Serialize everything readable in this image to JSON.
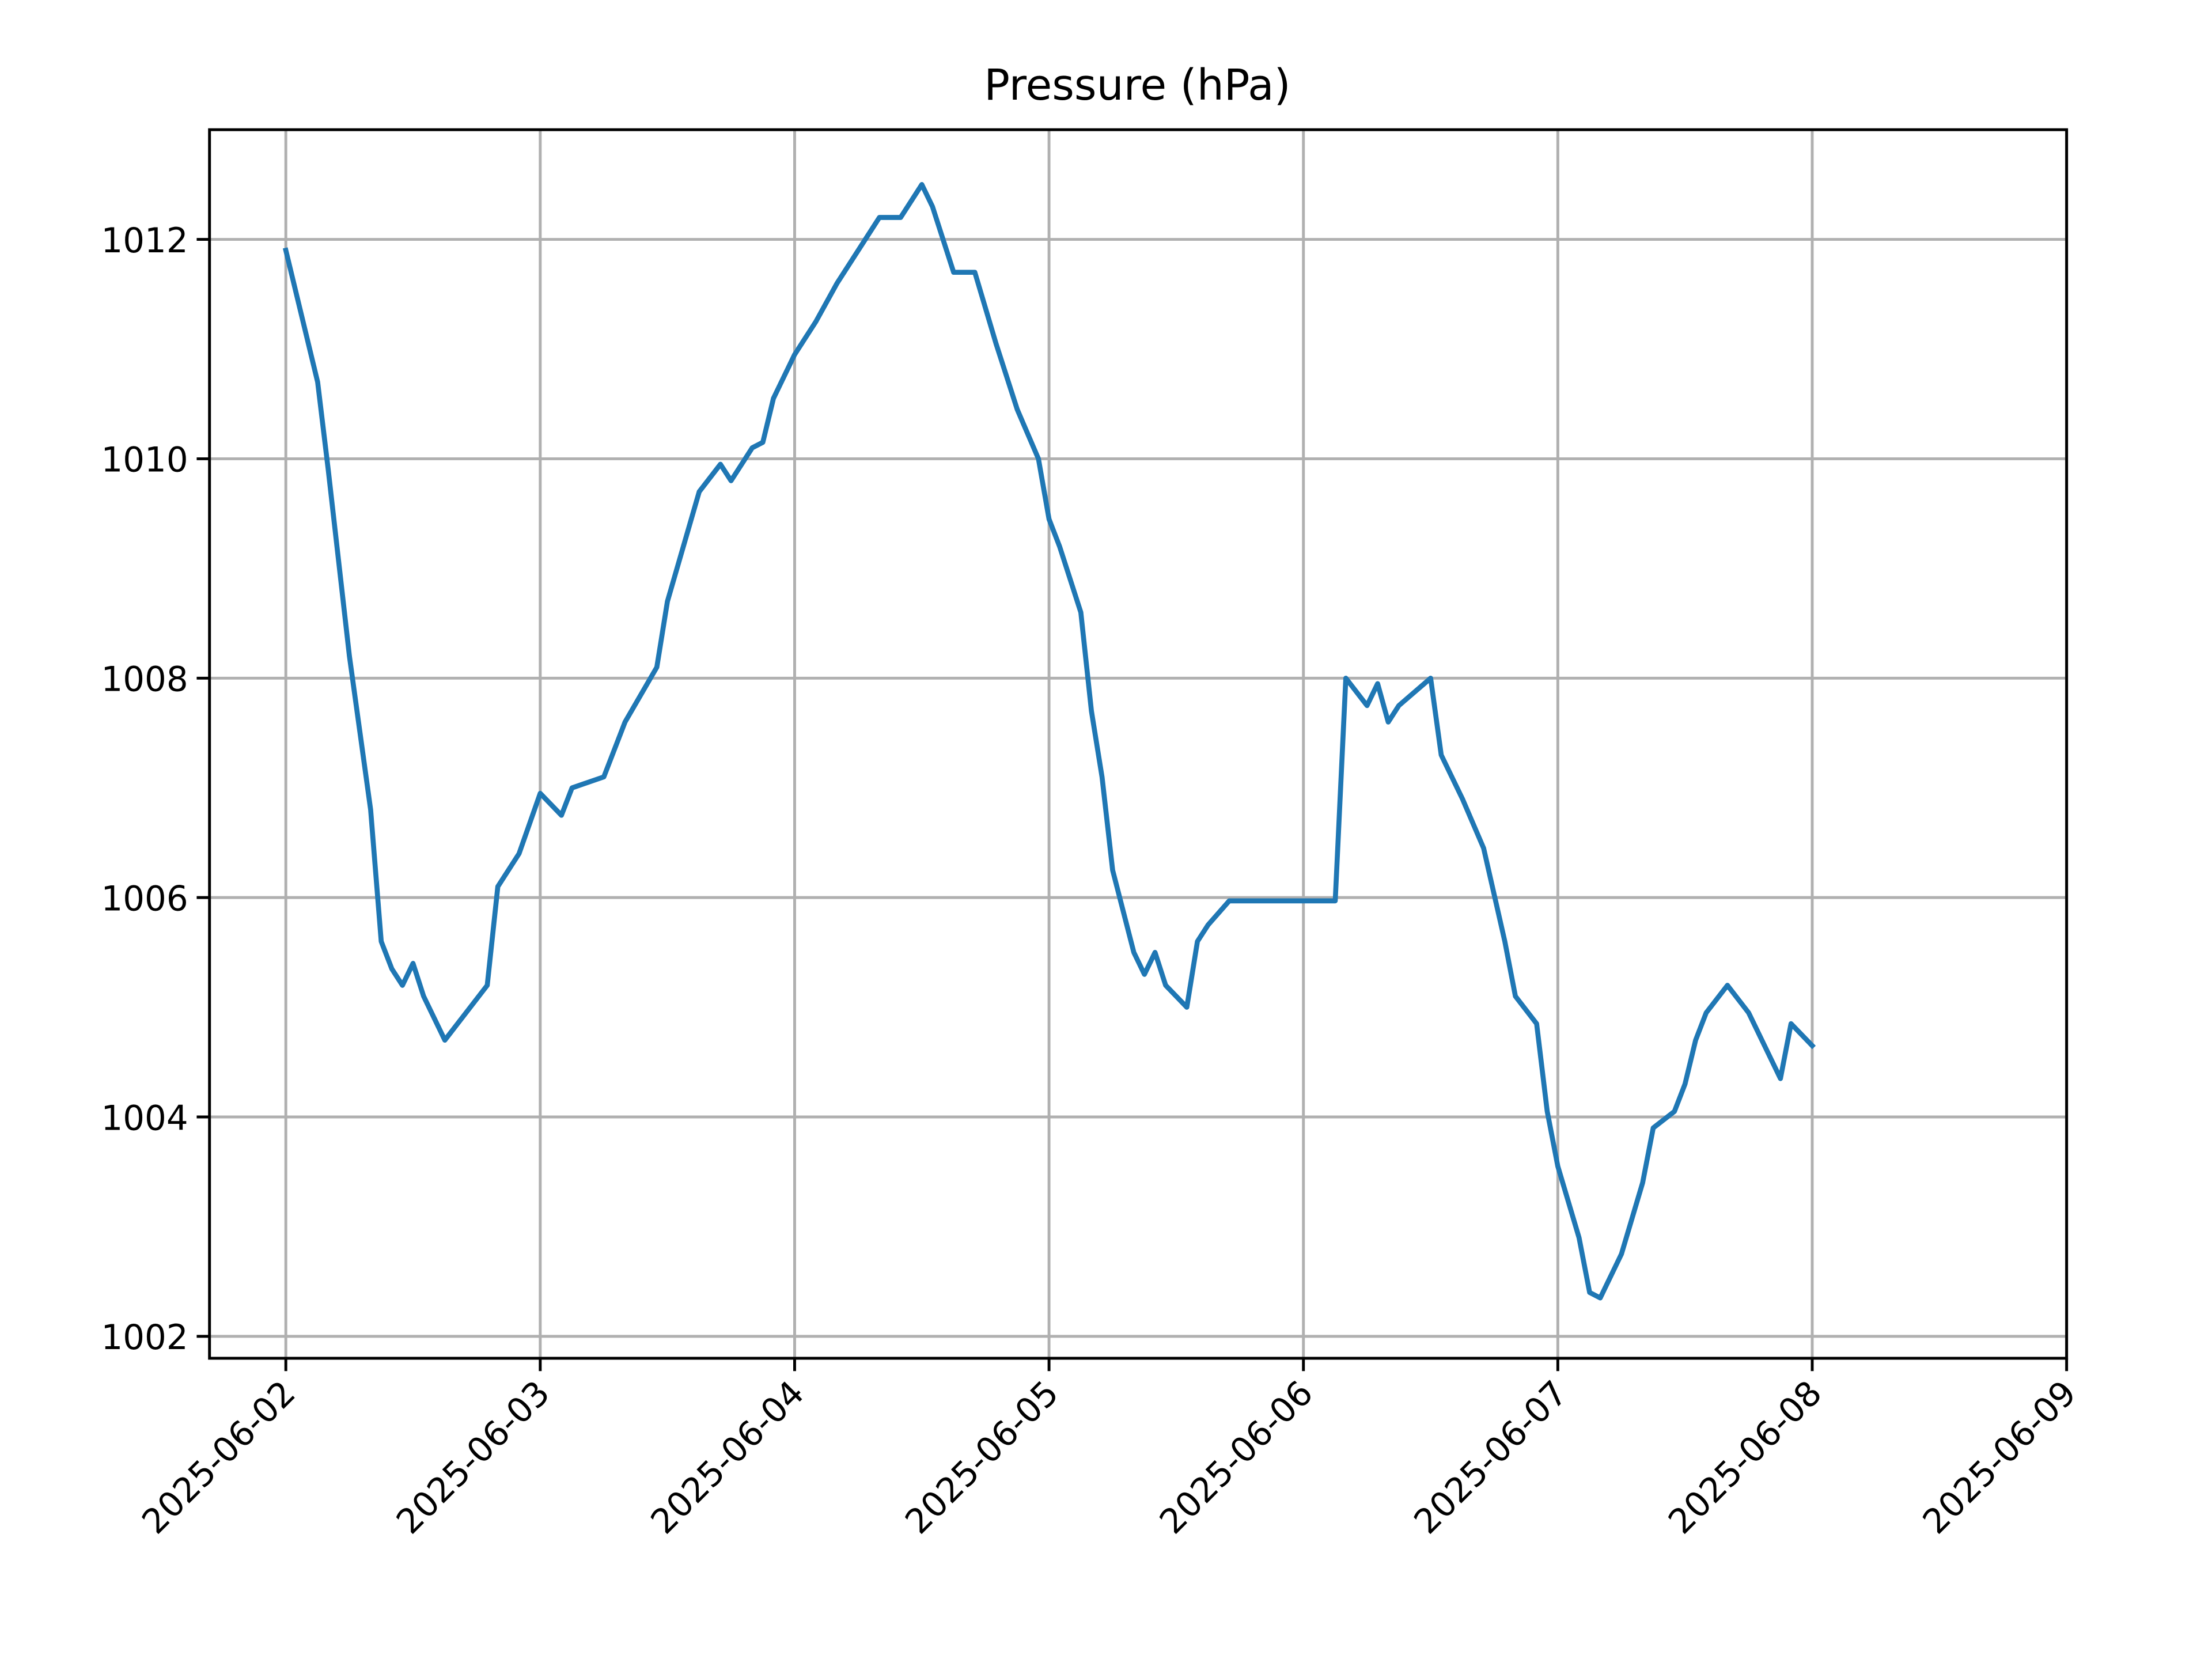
{
  "chart_data": {
    "type": "line",
    "title": "Pressure (hPa)",
    "color": "#1f77b4",
    "grid": true,
    "x": [
      "2025-06-02T00:00",
      "2025-06-02T03:00",
      "2025-06-02T04:00",
      "2025-06-02T06:00",
      "2025-06-02T08:00",
      "2025-06-02T09:00",
      "2025-06-02T10:00",
      "2025-06-02T11:00",
      "2025-06-02T12:00",
      "2025-06-02T13:00",
      "2025-06-02T15:00",
      "2025-06-02T17:00",
      "2025-06-02T19:00",
      "2025-06-02T20:00",
      "2025-06-02T22:00",
      "2025-06-03T00:00",
      "2025-06-03T02:00",
      "2025-06-03T03:00",
      "2025-06-03T06:00",
      "2025-06-03T08:00",
      "2025-06-03T11:00",
      "2025-06-03T12:00",
      "2025-06-03T15:00",
      "2025-06-03T17:00",
      "2025-06-03T18:00",
      "2025-06-03T20:00",
      "2025-06-03T21:00",
      "2025-06-03T22:00",
      "2025-06-04T00:00",
      "2025-06-04T02:00",
      "2025-06-04T04:00",
      "2025-06-04T06:00",
      "2025-06-04T08:00",
      "2025-06-04T10:00",
      "2025-06-04T12:00",
      "2025-06-04T13:00",
      "2025-06-04T15:00",
      "2025-06-04T17:00",
      "2025-06-04T19:00",
      "2025-06-04T21:00",
      "2025-06-04T23:00",
      "2025-06-05T00:00",
      "2025-06-05T01:00",
      "2025-06-05T03:00",
      "2025-06-05T04:00",
      "2025-06-05T05:00",
      "2025-06-05T06:00",
      "2025-06-05T08:00",
      "2025-06-05T09:00",
      "2025-06-05T10:00",
      "2025-06-05T11:00",
      "2025-06-05T13:00",
      "2025-06-05T14:00",
      "2025-06-05T15:00",
      "2025-06-05T17:00",
      "2025-06-06T03:00",
      "2025-06-06T04:00",
      "2025-06-06T06:00",
      "2025-06-06T07:00",
      "2025-06-06T08:00",
      "2025-06-06T09:00",
      "2025-06-06T12:00",
      "2025-06-06T13:00",
      "2025-06-06T15:00",
      "2025-06-06T17:00",
      "2025-06-06T19:00",
      "2025-06-06T20:00",
      "2025-06-06T22:00",
      "2025-06-06T23:00",
      "2025-06-07T00:00",
      "2025-06-07T02:00",
      "2025-06-07T03:00",
      "2025-06-07T04:00",
      "2025-06-07T06:00",
      "2025-06-07T08:00",
      "2025-06-07T09:00",
      "2025-06-07T11:00",
      "2025-06-07T12:00",
      "2025-06-07T13:00",
      "2025-06-07T14:00",
      "2025-06-07T16:00",
      "2025-06-07T18:00",
      "2025-06-07T20:00",
      "2025-06-07T21:00",
      "2025-06-07T22:00",
      "2025-06-08T00:00"
    ],
    "values": [
      1011.9,
      1010.7,
      1009.9,
      1008.2,
      1006.8,
      1005.6,
      1005.35,
      1005.2,
      1005.4,
      1005.1,
      1004.7,
      1004.95,
      1005.2,
      1006.1,
      1006.4,
      1006.95,
      1006.75,
      1007.0,
      1007.1,
      1007.6,
      1008.1,
      1008.7,
      1009.7,
      1009.95,
      1009.8,
      1010.1,
      1010.15,
      1010.55,
      1010.95,
      1011.25,
      1011.6,
      1011.9,
      1012.2,
      1012.2,
      1012.5,
      1012.3,
      1011.7,
      1011.7,
      1011.05,
      1010.45,
      1010.0,
      1009.45,
      1009.2,
      1008.6,
      1007.7,
      1007.1,
      1006.25,
      1005.5,
      1005.3,
      1005.5,
      1005.2,
      1005.0,
      1005.6,
      1005.75,
      1005.97,
      1005.97,
      1008.0,
      1007.75,
      1007.95,
      1007.6,
      1007.75,
      1008.0,
      1007.3,
      1006.9,
      1006.45,
      1005.6,
      1005.1,
      1004.85,
      1004.05,
      1003.55,
      1002.9,
      1002.4,
      1002.35,
      1002.75,
      1003.4,
      1003.9,
      1004.05,
      1004.3,
      1004.7,
      1004.95,
      1005.2,
      1004.95,
      1004.55,
      1004.35,
      1004.85,
      1004.65
    ],
    "xlim": [
      "2025-06-01T16:48",
      "2025-06-09T00:00"
    ],
    "xticks": [
      "2025-06-02",
      "2025-06-03",
      "2025-06-04",
      "2025-06-05",
      "2025-06-06",
      "2025-06-07",
      "2025-06-08",
      "2025-06-09"
    ],
    "ylim": [
      1001.8,
      1013
    ],
    "yticks": [
      1002,
      1004,
      1006,
      1008,
      1010,
      1012
    ]
  }
}
